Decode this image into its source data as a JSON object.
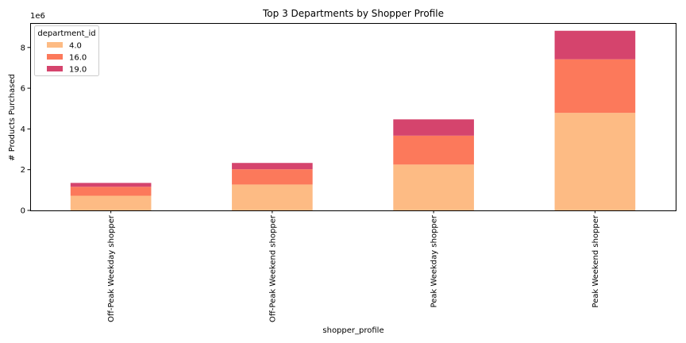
{
  "chart_data": {
    "type": "bar",
    "stacked": true,
    "title": "Top 3 Departments by Shopper Profile",
    "xlabel": "shopper_profile",
    "ylabel": "# Products Purchased",
    "y_multiplier_label": "1e6",
    "ylim": [
      0,
      9.2
    ],
    "yticks": [
      0,
      2,
      4,
      6,
      8
    ],
    "grid": false,
    "legend": {
      "title": "department_id",
      "placement": "top-left"
    },
    "categories": [
      "Off-Peak Weekday shopper",
      "Off-Peak Weekend shopper",
      "Peak Weekday shopper",
      "Peak Weekend shopper"
    ],
    "series": [
      {
        "name": "4.0",
        "color": "#fdbb84",
        "values": [
          0.72,
          1.27,
          2.25,
          4.79
        ]
      },
      {
        "name": "16.0",
        "color": "#fc795b",
        "values": [
          0.44,
          0.75,
          1.42,
          2.63
        ]
      },
      {
        "name": "19.0",
        "color": "#d5446d",
        "values": [
          0.19,
          0.31,
          0.8,
          1.4
        ]
      }
    ]
  }
}
